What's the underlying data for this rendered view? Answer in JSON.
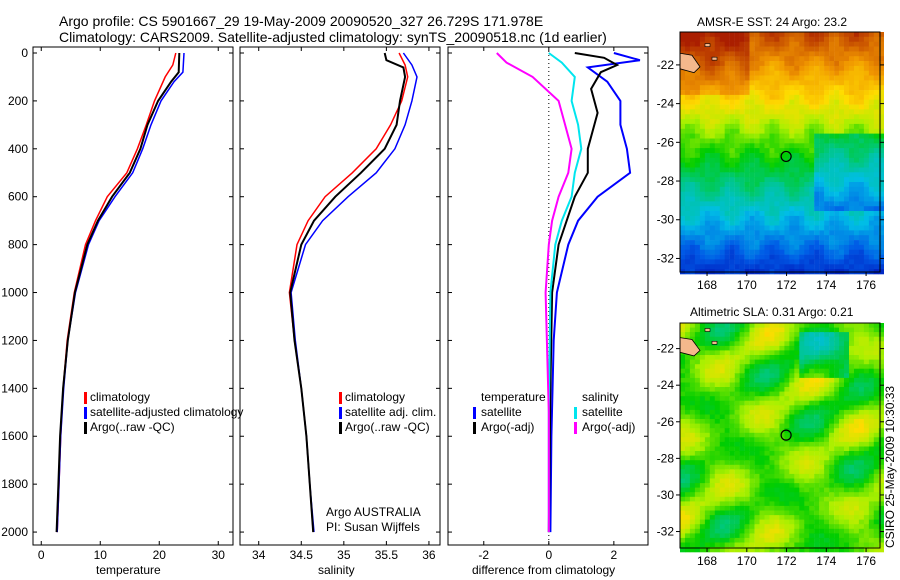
{
  "title_line1": "Argo profile: CS 5901667_29 19-May-2009 20090520_327 26.729S 171.978E",
  "title_line2": "Climatology: CARS2009. Satellite-adjusted climatology: synTS_20090518.nc (1d earlier)",
  "footer_stamp": "CSIRO 25-May-2009 10:30:33",
  "credit_line1": "Argo AUSTRALIA",
  "credit_line2": "PI: Susan Wijffels",
  "colors": {
    "climatology": "#ff0000",
    "satellite": "#0000ff",
    "argo": "#000000",
    "sal_satellite": "#00e5ee",
    "sal_argo": "#ff00ff"
  },
  "chart_data": [
    {
      "type": "line",
      "xlabel": "temperature",
      "xlim": [
        -1.4,
        32.5
      ],
      "ylim": [
        2054,
        -25
      ],
      "xticks": [
        "0",
        "10",
        "20",
        "30"
      ],
      "xtick_values": [
        0,
        10,
        20,
        30
      ],
      "yticks": [
        "0",
        "200",
        "400",
        "600",
        "800",
        "1000",
        "1200",
        "1400",
        "1600",
        "1800",
        "2000"
      ],
      "ytick_values": [
        0,
        200,
        400,
        600,
        800,
        1000,
        1200,
        1400,
        1600,
        1800,
        2000
      ],
      "legend": [
        "climatology",
        "satellite-adjusted climatology",
        "Argo(..raw -QC)"
      ],
      "legend_placement": "center-right",
      "series": [
        {
          "name": "climatology",
          "color": "#ff0000",
          "depth": [
            0,
            50,
            100,
            200,
            300,
            400,
            500,
            600,
            700,
            800,
            1000,
            1200,
            1400,
            1600,
            1800,
            2000
          ],
          "values": [
            22.8,
            22.3,
            21.0,
            19.2,
            17.8,
            16.3,
            14.5,
            11.2,
            9.2,
            7.5,
            5.6,
            4.4,
            3.7,
            3.3,
            3.0,
            2.7
          ]
        },
        {
          "name": "satellite-adjusted climatology",
          "color": "#0000ff",
          "depth": [
            0,
            80,
            120,
            200,
            300,
            400,
            500,
            600,
            700,
            800,
            1000,
            1200,
            1400,
            1600,
            1800,
            2000
          ],
          "values": [
            24.2,
            24.0,
            22.5,
            20.3,
            18.6,
            17.2,
            15.5,
            12.5,
            9.8,
            8.0,
            5.8,
            4.5,
            3.8,
            3.3,
            3.0,
            2.7
          ]
        },
        {
          "name": "Argo(..raw -QC)",
          "color": "#000000",
          "depth": [
            0,
            80,
            120,
            200,
            300,
            400,
            500,
            600,
            700,
            800,
            1000,
            1200,
            1400,
            1600,
            1800,
            2000
          ],
          "values": [
            23.4,
            23.3,
            22.0,
            19.8,
            18.0,
            16.8,
            15.0,
            12.0,
            9.6,
            7.8,
            5.7,
            4.5,
            3.7,
            3.2,
            2.9,
            2.6
          ]
        }
      ]
    },
    {
      "type": "line",
      "xlabel": "salinity",
      "xlim": [
        33.78,
        36.13
      ],
      "ylim": [
        2054,
        -25
      ],
      "xticks": [
        "34",
        "34.5",
        "35",
        "35.5",
        "36"
      ],
      "xtick_values": [
        34,
        34.5,
        35,
        35.5,
        36
      ],
      "legend": [
        "climatology",
        "satellite adj. clim.",
        "Argo(..raw -QC)"
      ],
      "legend_placement": "center-right",
      "series": [
        {
          "name": "climatology",
          "color": "#ff0000",
          "depth": [
            0,
            50,
            100,
            200,
            300,
            400,
            500,
            600,
            700,
            800,
            1000,
            1200,
            1400,
            1600,
            1800,
            2000
          ],
          "values": [
            35.65,
            35.72,
            35.75,
            35.68,
            35.55,
            35.38,
            35.1,
            34.78,
            34.58,
            34.45,
            34.36,
            34.42,
            34.5,
            34.56,
            34.6,
            34.64
          ]
        },
        {
          "name": "satellite adj. clim.",
          "color": "#0000ff",
          "depth": [
            0,
            50,
            100,
            200,
            300,
            400,
            500,
            600,
            700,
            800,
            1000,
            1200,
            1400,
            1600,
            1800,
            2000
          ],
          "values": [
            35.7,
            35.8,
            35.86,
            35.8,
            35.72,
            35.6,
            35.38,
            35.05,
            34.75,
            34.55,
            34.38,
            34.43,
            34.5,
            34.56,
            34.6,
            34.65
          ]
        },
        {
          "name": "Argo(..raw -QC)",
          "color": "#000000",
          "depth": [
            0,
            30,
            60,
            100,
            200,
            300,
            400,
            500,
            600,
            700,
            800,
            1000,
            1200,
            1400,
            1600,
            1800,
            2000
          ],
          "values": [
            35.48,
            35.5,
            35.7,
            35.72,
            35.66,
            35.62,
            35.48,
            35.2,
            34.9,
            34.65,
            34.5,
            34.37,
            34.42,
            34.5,
            34.56,
            34.6,
            34.64
          ]
        }
      ]
    },
    {
      "type": "line",
      "xlabel": "difference from climatology",
      "xlim": [
        -3.1,
        3.05
      ],
      "ylim": [
        2054,
        -25
      ],
      "xticks": [
        "-2",
        "0",
        "2"
      ],
      "xtick_values": [
        -2,
        0,
        2
      ],
      "legend_temperature_title": "temperature",
      "legend_salinity_title": "salinity",
      "legend": [
        "satellite",
        "Argo(-adj)",
        "satellite",
        "Argo(-adj)"
      ],
      "legend_placement": "center",
      "series": [
        {
          "name": "temperature satellite",
          "color": "#0000ff",
          "depth": [
            0,
            30,
            60,
            120,
            200,
            300,
            400,
            500,
            600,
            700,
            800,
            1000,
            1200,
            1600,
            2000
          ],
          "values": [
            2.0,
            2.8,
            1.2,
            1.8,
            2.2,
            2.2,
            2.4,
            2.5,
            1.5,
            0.9,
            0.6,
            0.25,
            0.15,
            0.08,
            0.05
          ]
        },
        {
          "name": "temperature Argo(-adj)",
          "color": "#000000",
          "depth": [
            0,
            20,
            50,
            80,
            150,
            250,
            400,
            500,
            600,
            800,
            1000,
            1400,
            2000
          ],
          "values": [
            0.8,
            1.7,
            2.1,
            1.6,
            1.3,
            1.5,
            1.2,
            1.2,
            0.8,
            0.3,
            0.1,
            0.05,
            0.0
          ]
        },
        {
          "name": "salinity satellite",
          "color": "#00e5ee",
          "depth": [
            0,
            40,
            100,
            200,
            300,
            400,
            500,
            600,
            700,
            800,
            1000,
            1500,
            2000
          ],
          "values": [
            0,
            0.4,
            0.8,
            0.7,
            0.9,
            1.0,
            0.8,
            0.7,
            0.4,
            0.2,
            0.05,
            0,
            0
          ]
        },
        {
          "name": "salinity Argo(-adj)",
          "color": "#ff00ff",
          "depth": [
            0,
            40,
            100,
            200,
            300,
            400,
            500,
            600,
            700,
            800,
            1000,
            1500,
            2000
          ],
          "values": [
            -1.6,
            -1.3,
            -0.5,
            0.3,
            0.5,
            0.7,
            0.6,
            0.3,
            0.1,
            0,
            -0.1,
            0,
            0
          ]
        }
      ]
    },
    {
      "type": "heatmap",
      "title": "AMSR-E SST: 24 Argo: 23.2",
      "xlim": [
        166.64,
        176.7
      ],
      "ylim": [
        -32.7,
        -20.3
      ],
      "xticks": [
        "168",
        "170",
        "172",
        "174",
        "176"
      ],
      "xtick_values": [
        168,
        170,
        172,
        174,
        176
      ],
      "yticks": [
        "-22",
        "-24",
        "-26",
        "-28",
        "-30",
        "-32"
      ],
      "ytick_values": [
        -22,
        -24,
        -26,
        -28,
        -30,
        -32
      ],
      "marker": {
        "lon": 171.978,
        "lat": -26.729
      }
    },
    {
      "type": "heatmap",
      "title": "Altimetric SLA: 0.31 Argo: 0.21",
      "xlim": [
        166.64,
        176.7
      ],
      "ylim": [
        -32.9,
        -20.6
      ],
      "xticks": [
        "168",
        "170",
        "172",
        "174",
        "176"
      ],
      "xtick_values": [
        168,
        170,
        172,
        174,
        176
      ],
      "yticks": [
        "-22",
        "-24",
        "-26",
        "-28",
        "-30",
        "-32"
      ],
      "ytick_values": [
        -22,
        -24,
        -26,
        -28,
        -30,
        -32
      ],
      "marker": {
        "lon": 171.978,
        "lat": -26.729
      }
    }
  ]
}
